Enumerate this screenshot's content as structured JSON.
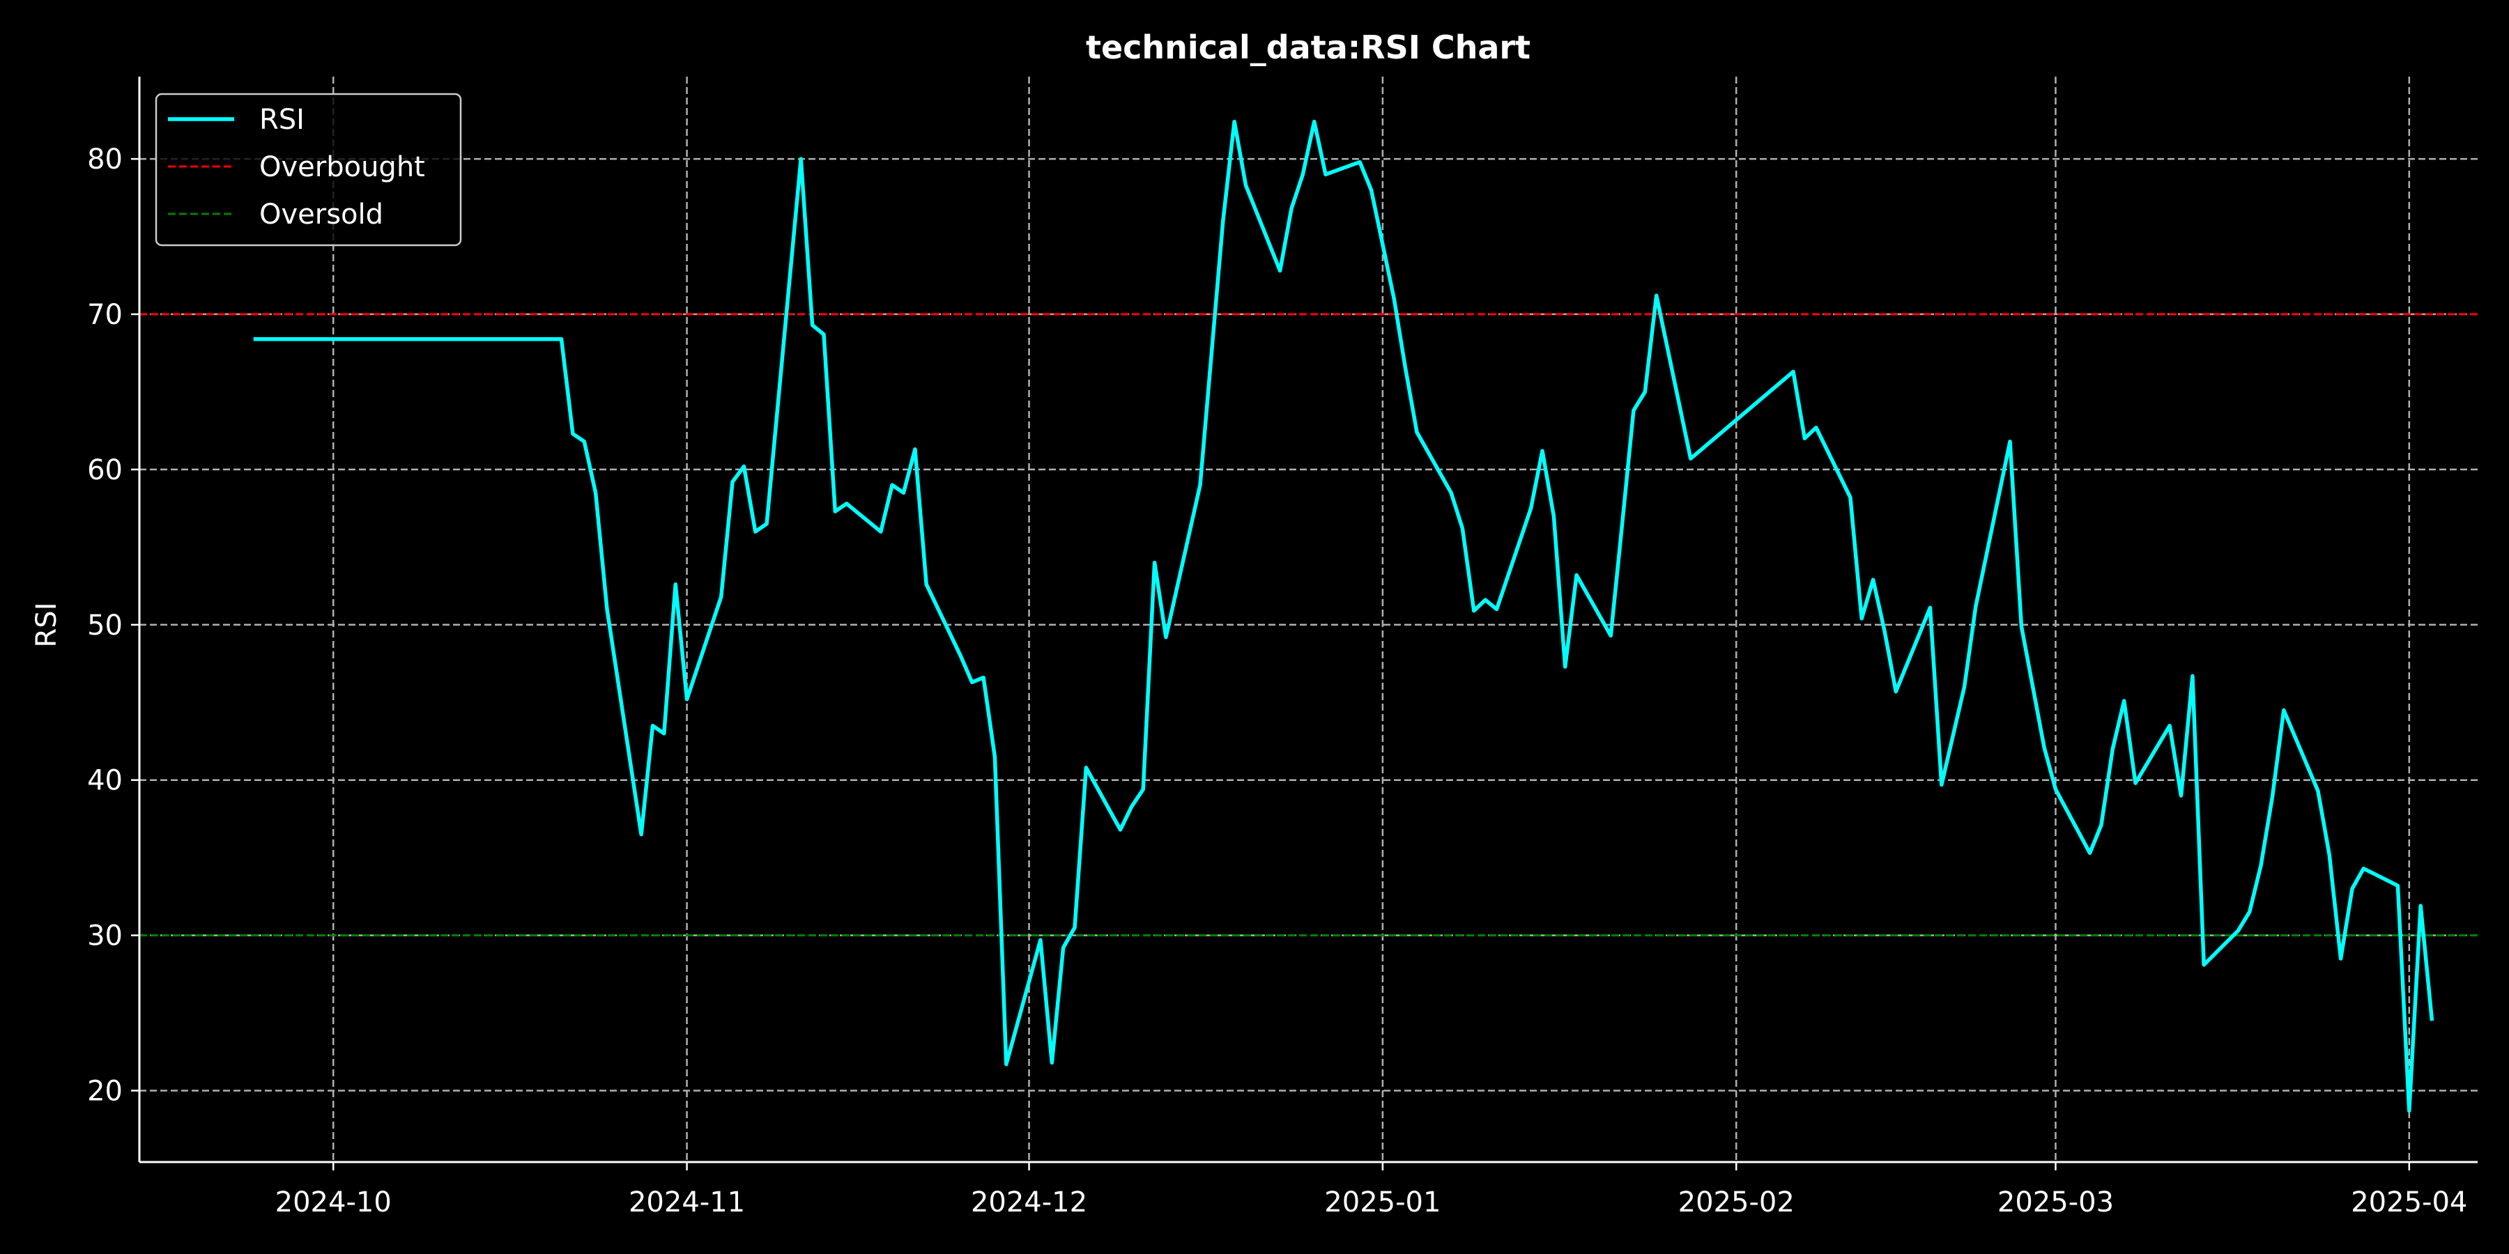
{
  "chart_data": {
    "type": "line",
    "title": "technical_data:RSI Chart",
    "xlabel": "",
    "ylabel": "RSI",
    "xlim": [
      "2024-09-14",
      "2025-04-07"
    ],
    "ylim": [
      15.4,
      85.3
    ],
    "y_ticks": [
      20,
      30,
      40,
      50,
      60,
      70,
      80
    ],
    "x_ticks": [
      {
        "date": "2024-10-01",
        "label": "2024-10"
      },
      {
        "date": "2024-11-01",
        "label": "2024-11"
      },
      {
        "date": "2024-12-01",
        "label": "2024-12"
      },
      {
        "date": "2025-01-01",
        "label": "2025-01"
      },
      {
        "date": "2025-02-01",
        "label": "2025-02"
      },
      {
        "date": "2025-03-01",
        "label": "2025-03"
      },
      {
        "date": "2025-04-01",
        "label": "2025-04"
      }
    ],
    "grid": true,
    "legend_position": "top-left",
    "colors": {
      "background": "#000000",
      "text": "#ffffff",
      "grid": "#b0b0b0",
      "rsi": "#00ffff",
      "overbought": "#ff0000",
      "oversold": "#008000"
    },
    "reference_lines": [
      {
        "name": "Overbought",
        "y": 70,
        "color": "#ff0000"
      },
      {
        "name": "Oversold",
        "y": 30,
        "color": "#008000"
      }
    ],
    "series": [
      {
        "name": "RSI",
        "color": "#00ffff",
        "points": [
          [
            "2024-09-24",
            68.4
          ],
          [
            "2024-10-21",
            68.4
          ],
          [
            "2024-10-22",
            62.3
          ],
          [
            "2024-10-23",
            61.8
          ],
          [
            "2024-10-24",
            58.5
          ],
          [
            "2024-10-25",
            51.0
          ],
          [
            "2024-10-28",
            36.5
          ],
          [
            "2024-10-29",
            43.5
          ],
          [
            "2024-10-30",
            43.0
          ],
          [
            "2024-10-31",
            52.6
          ],
          [
            "2024-11-01",
            45.2
          ],
          [
            "2024-11-04",
            51.8
          ],
          [
            "2024-11-05",
            59.2
          ],
          [
            "2024-11-06",
            60.2
          ],
          [
            "2024-11-07",
            56.0
          ],
          [
            "2024-11-08",
            56.5
          ],
          [
            "2024-11-11",
            80.0
          ],
          [
            "2024-11-12",
            69.3
          ],
          [
            "2024-11-13",
            68.7
          ],
          [
            "2024-11-14",
            57.3
          ],
          [
            "2024-11-15",
            57.8
          ],
          [
            "2024-11-18",
            56.0
          ],
          [
            "2024-11-19",
            59.0
          ],
          [
            "2024-11-20",
            58.5
          ],
          [
            "2024-11-21",
            61.3
          ],
          [
            "2024-11-22",
            52.6
          ],
          [
            "2024-11-25",
            48.0
          ],
          [
            "2024-11-26",
            46.3
          ],
          [
            "2024-11-27",
            46.6
          ],
          [
            "2024-11-28",
            41.5
          ],
          [
            "2024-11-29",
            21.7
          ],
          [
            "2024-12-02",
            29.7
          ],
          [
            "2024-12-03",
            21.8
          ],
          [
            "2024-12-04",
            29.2
          ],
          [
            "2024-12-05",
            30.5
          ],
          [
            "2024-12-06",
            40.8
          ],
          [
            "2024-12-09",
            36.8
          ],
          [
            "2024-12-10",
            38.3
          ],
          [
            "2024-12-11",
            39.4
          ],
          [
            "2024-12-12",
            54.0
          ],
          [
            "2024-12-13",
            49.2
          ],
          [
            "2024-12-16",
            59.0
          ],
          [
            "2024-12-17",
            67.5
          ],
          [
            "2024-12-18",
            76.0
          ],
          [
            "2024-12-19",
            82.4
          ],
          [
            "2024-12-20",
            78.3
          ],
          [
            "2024-12-23",
            72.8
          ],
          [
            "2024-12-24",
            76.8
          ],
          [
            "2024-12-25",
            79.0
          ],
          [
            "2024-12-26",
            82.4
          ],
          [
            "2024-12-27",
            79.0
          ],
          [
            "2024-12-30",
            79.8
          ],
          [
            "2024-12-31",
            78.0
          ],
          [
            "2025-01-02",
            71.0
          ],
          [
            "2025-01-03",
            66.5
          ],
          [
            "2025-01-04",
            62.4
          ],
          [
            "2025-01-07",
            58.5
          ],
          [
            "2025-01-08",
            56.2
          ],
          [
            "2025-01-09",
            50.9
          ],
          [
            "2025-01-10",
            51.6
          ],
          [
            "2025-01-11",
            51.0
          ],
          [
            "2025-01-14",
            57.5
          ],
          [
            "2025-01-15",
            61.2
          ],
          [
            "2025-01-16",
            57.0
          ],
          [
            "2025-01-17",
            47.3
          ],
          [
            "2025-01-18",
            53.2
          ],
          [
            "2025-01-21",
            49.3
          ],
          [
            "2025-01-22",
            56.5
          ],
          [
            "2025-01-23",
            63.8
          ],
          [
            "2025-01-24",
            65.0
          ],
          [
            "2025-01-25",
            71.2
          ],
          [
            "2025-01-28",
            60.7
          ],
          [
            "2025-02-06",
            66.3
          ],
          [
            "2025-02-07",
            62.0
          ],
          [
            "2025-02-08",
            62.7
          ],
          [
            "2025-02-11",
            58.2
          ],
          [
            "2025-02-12",
            50.4
          ],
          [
            "2025-02-13",
            52.9
          ],
          [
            "2025-02-14",
            49.6
          ],
          [
            "2025-02-15",
            45.7
          ],
          [
            "2025-02-18",
            51.1
          ],
          [
            "2025-02-19",
            39.7
          ],
          [
            "2025-02-21",
            46.0
          ],
          [
            "2025-02-22",
            51.2
          ],
          [
            "2025-02-25",
            61.8
          ],
          [
            "2025-02-26",
            49.9
          ],
          [
            "2025-02-28",
            42.1
          ],
          [
            "2025-03-01",
            39.4
          ],
          [
            "2025-03-04",
            35.3
          ],
          [
            "2025-03-05",
            37.1
          ],
          [
            "2025-03-06",
            42.0
          ],
          [
            "2025-03-07",
            45.1
          ],
          [
            "2025-03-08",
            39.8
          ],
          [
            "2025-03-11",
            43.5
          ],
          [
            "2025-03-12",
            39.0
          ],
          [
            "2025-03-13",
            46.7
          ],
          [
            "2025-03-14",
            28.1
          ],
          [
            "2025-03-17",
            30.3
          ],
          [
            "2025-03-18",
            31.5
          ],
          [
            "2025-03-19",
            34.5
          ],
          [
            "2025-03-20",
            38.9
          ],
          [
            "2025-03-21",
            44.5
          ],
          [
            "2025-03-24",
            39.3
          ],
          [
            "2025-03-25",
            35.2
          ],
          [
            "2025-03-26",
            28.5
          ],
          [
            "2025-03-27",
            33.0
          ],
          [
            "2025-03-28",
            34.3
          ],
          [
            "2025-03-31",
            33.2
          ],
          [
            "2025-04-01",
            18.7
          ],
          [
            "2025-04-02",
            31.9
          ],
          [
            "2025-04-03",
            24.5
          ]
        ]
      }
    ]
  }
}
